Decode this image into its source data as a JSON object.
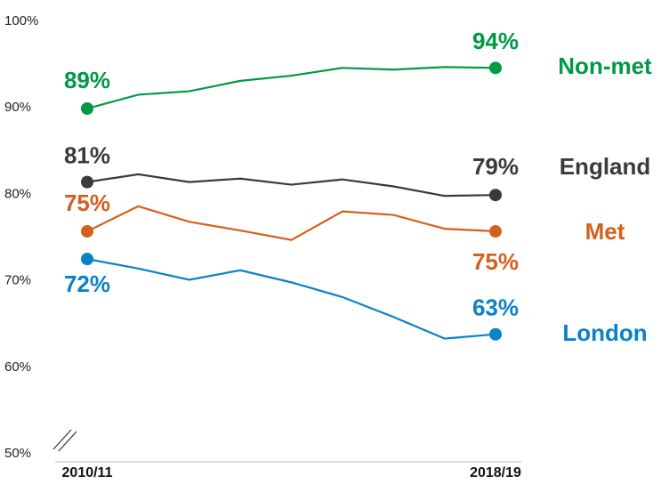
{
  "chart_data": {
    "type": "line",
    "categories": [
      "2010/11",
      null,
      null,
      null,
      null,
      null,
      null,
      null,
      "2018/19"
    ],
    "ylim": [
      50,
      100
    ],
    "yticks": [
      {
        "value": 50,
        "label": "50%"
      },
      {
        "value": 60,
        "label": "60%"
      },
      {
        "value": 70,
        "label": "70%"
      },
      {
        "value": 80,
        "label": "80%"
      },
      {
        "value": 90,
        "label": "90%"
      },
      {
        "value": 100,
        "label": "100%"
      }
    ],
    "series": [
      {
        "name": "Non-met",
        "color": "#009a44",
        "values": [
          89.3,
          90.9,
          91.3,
          92.5,
          93.1,
          94.0,
          93.8,
          94.1,
          94.0
        ],
        "value_labels": [
          "89%",
          null,
          null,
          null,
          null,
          null,
          null,
          null,
          "94%"
        ]
      },
      {
        "name": "England",
        "color": "#3a3a3c",
        "values": [
          80.8,
          81.7,
          80.8,
          81.2,
          80.5,
          81.1,
          80.3,
          79.2,
          79.3
        ],
        "value_labels": [
          "81%",
          null,
          null,
          null,
          null,
          null,
          null,
          null,
          "79%"
        ]
      },
      {
        "name": "Met",
        "color": "#d4601c",
        "values": [
          75.1,
          78.0,
          76.2,
          75.2,
          74.1,
          77.4,
          77.0,
          75.4,
          75.1
        ],
        "value_labels": [
          "75%",
          null,
          null,
          null,
          null,
          null,
          null,
          null,
          "75%"
        ]
      },
      {
        "name": "London",
        "color": "#0a82c8",
        "values": [
          71.9,
          70.8,
          69.5,
          70.6,
          69.2,
          67.5,
          65.2,
          62.7,
          63.2
        ],
        "value_labels": [
          "72%",
          null,
          null,
          null,
          null,
          null,
          null,
          null,
          "63%"
        ]
      }
    ]
  }
}
